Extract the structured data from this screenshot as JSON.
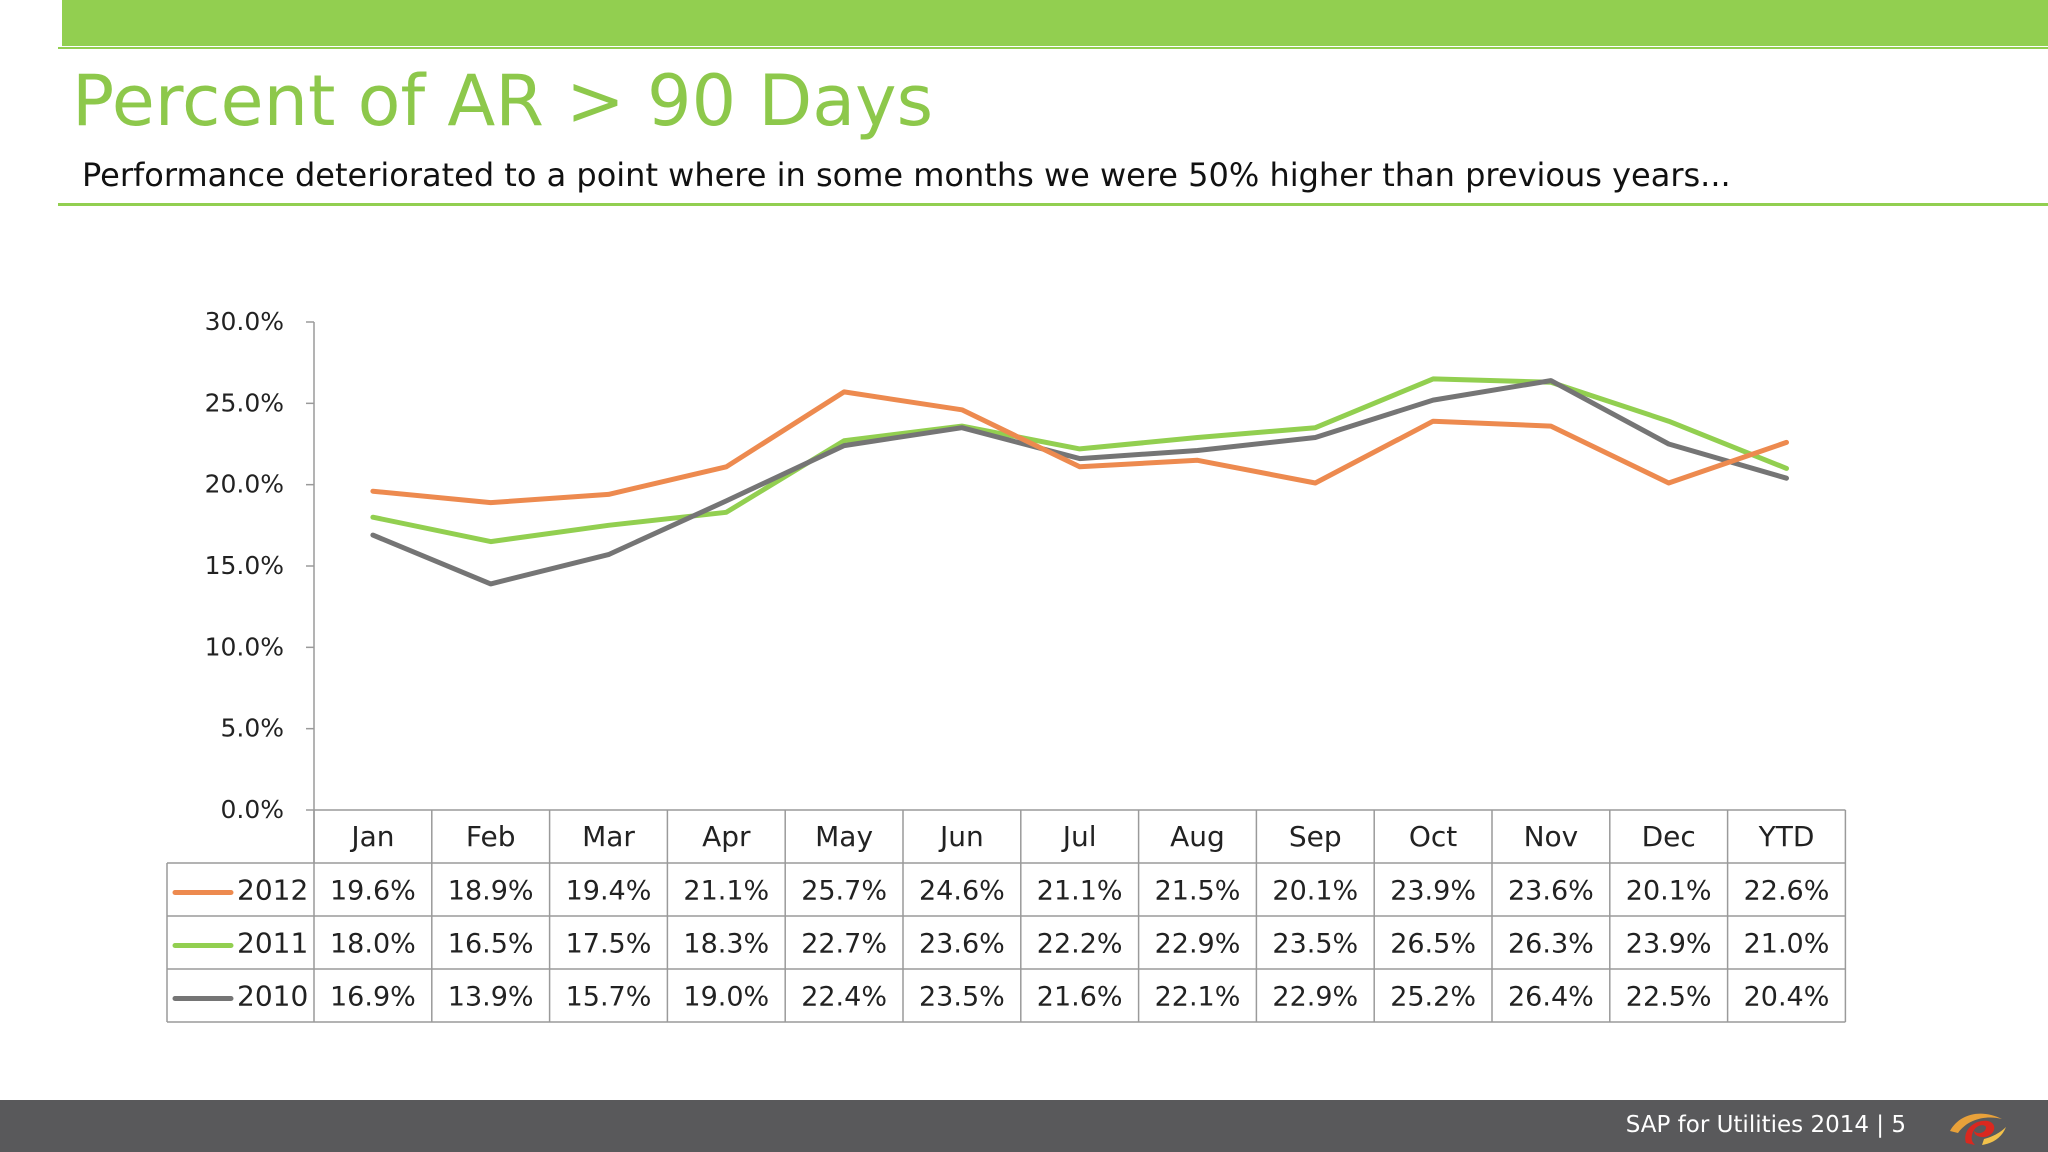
{
  "slide": {
    "title": "Percent of AR > 90 Days",
    "subtitle": "Performance deteriorated to a point where in some months we were 50% higher than previous years...",
    "footer": "SAP for Utilities 2014 |  5",
    "colors": {
      "accent": "#92cf50",
      "title": "#8dc84b",
      "footer_bg": "#59595b"
    },
    "logo_icon": "utilities-swirl-logo-icon"
  },
  "chart_data": {
    "type": "line",
    "categories": [
      "Jan",
      "Feb",
      "Mar",
      "Apr",
      "May",
      "Jun",
      "Jul",
      "Aug",
      "Sep",
      "Oct",
      "Nov",
      "Dec",
      "YTD"
    ],
    "ylim": [
      0,
      30
    ],
    "yticks": [
      "0.0%",
      "5.0%",
      "10.0%",
      "15.0%",
      "20.0%",
      "25.0%",
      "30.0%"
    ],
    "grid": false,
    "legend": "data-table",
    "series": [
      {
        "name": "2012",
        "color": "#ed8a4f",
        "values": [
          19.6,
          18.9,
          19.4,
          21.1,
          25.7,
          24.6,
          21.1,
          21.5,
          20.1,
          23.9,
          23.6,
          20.1,
          22.6
        ],
        "labels": [
          "19.6%",
          "18.9%",
          "19.4%",
          "21.1%",
          "25.7%",
          "24.6%",
          "21.1%",
          "21.5%",
          "20.1%",
          "23.9%",
          "23.6%",
          "20.1%",
          "22.6%"
        ]
      },
      {
        "name": "2011",
        "color": "#92cf50",
        "values": [
          18.0,
          16.5,
          17.5,
          18.3,
          22.7,
          23.6,
          22.2,
          22.9,
          23.5,
          26.5,
          26.3,
          23.9,
          21.0
        ],
        "labels": [
          "18.0%",
          "16.5%",
          "17.5%",
          "18.3%",
          "22.7%",
          "23.6%",
          "22.2%",
          "22.9%",
          "23.5%",
          "26.5%",
          "26.3%",
          "23.9%",
          "21.0%"
        ]
      },
      {
        "name": "2010",
        "color": "#757575",
        "values": [
          16.9,
          13.9,
          15.7,
          19.0,
          22.4,
          23.5,
          21.6,
          22.1,
          22.9,
          25.2,
          26.4,
          22.5,
          20.4
        ],
        "labels": [
          "16.9%",
          "13.9%",
          "15.7%",
          "19.0%",
          "22.4%",
          "23.5%",
          "21.6%",
          "22.1%",
          "22.9%",
          "25.2%",
          "26.4%",
          "22.5%",
          "20.4%"
        ]
      }
    ]
  }
}
